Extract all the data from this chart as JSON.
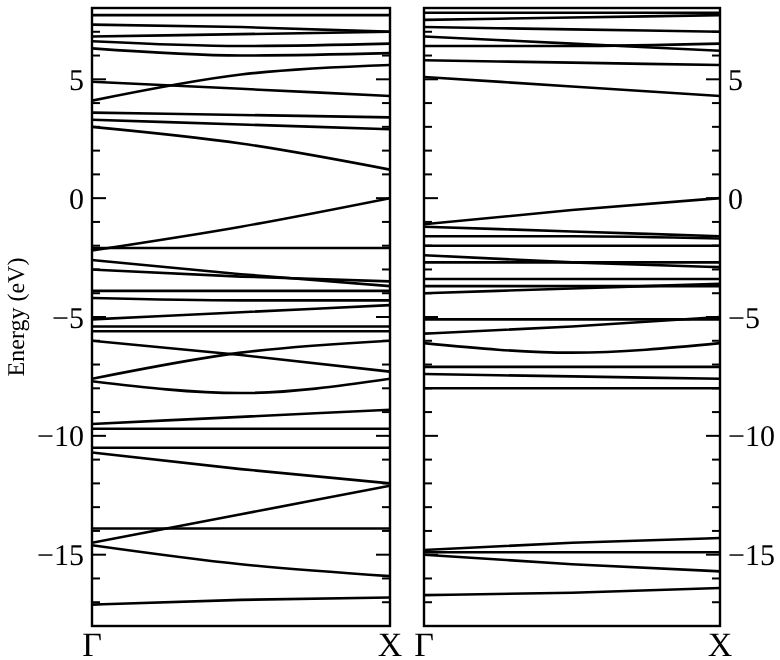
{
  "chart_data": [
    {
      "type": "line",
      "ylabel": "Energy (eV)",
      "categories": [
        "Γ",
        null,
        "X"
      ],
      "ylim": [
        -18,
        8
      ],
      "grid": false,
      "line_style": "solid",
      "marker": "none",
      "yticks": [
        {
          "value": -17,
          "label": null
        },
        {
          "value": -16,
          "label": null
        },
        {
          "value": -15,
          "label": "−15"
        },
        {
          "value": -14,
          "label": null
        },
        {
          "value": -13,
          "label": null
        },
        {
          "value": -12,
          "label": null
        },
        {
          "value": -11,
          "label": null
        },
        {
          "value": -10,
          "label": "−10"
        },
        {
          "value": -9,
          "label": null
        },
        {
          "value": -8,
          "label": null
        },
        {
          "value": -7,
          "label": null
        },
        {
          "value": -6,
          "label": null
        },
        {
          "value": -5,
          "label": "−5"
        },
        {
          "value": -4,
          "label": null
        },
        {
          "value": -3,
          "label": null
        },
        {
          "value": -2,
          "label": null
        },
        {
          "value": -1,
          "label": null
        },
        {
          "value": 0,
          "label": "0"
        },
        {
          "value": 1,
          "label": null
        },
        {
          "value": 2,
          "label": null
        },
        {
          "value": 3,
          "label": null
        },
        {
          "value": 4,
          "label": null
        },
        {
          "value": 5,
          "label": "5"
        },
        {
          "value": 6,
          "label": null
        },
        {
          "value": 7,
          "label": null
        }
      ],
      "series": [
        {
          "color": "#000000",
          "values": [
            7.7,
            7.7,
            7.7
          ]
        },
        {
          "color": "#000000",
          "values": [
            7.3,
            7.2,
            7.0
          ]
        },
        {
          "color": "#000000",
          "values": [
            6.8,
            6.9,
            7.0
          ]
        },
        {
          "color": "#000000",
          "values": [
            6.6,
            6.4,
            6.5
          ]
        },
        {
          "color": "#000000",
          "values": [
            6.3,
            6.0,
            6.1
          ]
        },
        {
          "color": "#000000",
          "values": [
            4.9,
            4.6,
            4.3
          ]
        },
        {
          "color": "#000000",
          "values": [
            4.1,
            5.2,
            5.6
          ]
        },
        {
          "color": "#000000",
          "values": [
            3.6,
            3.5,
            3.4
          ]
        },
        {
          "color": "#000000",
          "values": [
            3.3,
            3.1,
            2.9
          ]
        },
        {
          "color": "#000000",
          "values": [
            3.0,
            2.3,
            1.2
          ]
        },
        {
          "color": "#000000",
          "values": [
            -2.2,
            -1.2,
            0
          ]
        },
        {
          "color": "#000000",
          "values": [
            -2.1,
            -2.1,
            -2.1
          ]
        },
        {
          "color": "#000000",
          "values": [
            -2.6,
            -3.2,
            -3.7
          ]
        },
        {
          "color": "#000000",
          "values": [
            -3.0,
            -3.3,
            -3.5
          ]
        },
        {
          "color": "#000000",
          "values": [
            -3.9,
            -3.9,
            -3.9
          ]
        },
        {
          "color": "#000000",
          "values": [
            -4.2,
            -4.3,
            -4.3
          ]
        },
        {
          "color": "#000000",
          "values": [
            -5.1,
            -4.8,
            -4.5
          ]
        },
        {
          "color": "#000000",
          "values": [
            -5.4,
            -5.4,
            -5.4
          ]
        },
        {
          "color": "#000000",
          "values": [
            -5.6,
            -5.6,
            -5.6
          ]
        },
        {
          "color": "#000000",
          "values": [
            -6.0,
            -6.6,
            -7.3
          ]
        },
        {
          "color": "#000000",
          "values": [
            -7.6,
            -6.5,
            -6.0
          ]
        },
        {
          "color": "#000000",
          "values": [
            -7.7,
            -8.2,
            -7.6
          ]
        },
        {
          "color": "#000000",
          "values": [
            -9.5,
            -9.2,
            -8.9
          ]
        },
        {
          "color": "#000000",
          "values": [
            -9.7,
            -9.7,
            -9.7
          ]
        },
        {
          "color": "#000000",
          "values": [
            -10.5,
            -10.5,
            -10.5
          ]
        },
        {
          "color": "#000000",
          "values": [
            -10.7,
            -11.4,
            -12.0
          ]
        },
        {
          "color": "#000000",
          "values": [
            -14.5,
            -13.3,
            -12.1
          ]
        },
        {
          "color": "#000000",
          "values": [
            -13.9,
            -13.9,
            -13.9
          ]
        },
        {
          "color": "#000000",
          "values": [
            -14.6,
            -15.4,
            -15.9
          ]
        },
        {
          "color": "#000000",
          "values": [
            -17.1,
            -16.9,
            -16.8
          ]
        }
      ]
    },
    {
      "type": "line",
      "categories": [
        "Γ",
        null,
        "X"
      ],
      "ylim": [
        -18,
        8
      ],
      "grid": false,
      "line_style": "solid",
      "marker": "none",
      "yticks": [
        {
          "value": -17,
          "label": null
        },
        {
          "value": -16,
          "label": null
        },
        {
          "value": -15,
          "label": "−15"
        },
        {
          "value": -14,
          "label": null
        },
        {
          "value": -13,
          "label": null
        },
        {
          "value": -12,
          "label": null
        },
        {
          "value": -11,
          "label": null
        },
        {
          "value": -10,
          "label": "−10"
        },
        {
          "value": -9,
          "label": null
        },
        {
          "value": -8,
          "label": null
        },
        {
          "value": -7,
          "label": null
        },
        {
          "value": -6,
          "label": null
        },
        {
          "value": -5,
          "label": "−5"
        },
        {
          "value": -4,
          "label": null
        },
        {
          "value": -3,
          "label": null
        },
        {
          "value": -2,
          "label": null
        },
        {
          "value": -1,
          "label": null
        },
        {
          "value": 0,
          "label": "0"
        },
        {
          "value": 1,
          "label": null
        },
        {
          "value": 2,
          "label": null
        },
        {
          "value": 3,
          "label": null
        },
        {
          "value": 4,
          "label": null
        },
        {
          "value": 5,
          "label": "5"
        },
        {
          "value": 6,
          "label": null
        },
        {
          "value": 7,
          "label": null
        }
      ],
      "series": [
        {
          "color": "#000000",
          "values": [
            7.8,
            7.8,
            7.8
          ]
        },
        {
          "color": "#000000",
          "values": [
            7.5,
            7.6,
            7.7
          ]
        },
        {
          "color": "#000000",
          "values": [
            7.2,
            7.1,
            7.0
          ]
        },
        {
          "color": "#000000",
          "values": [
            6.8,
            6.5,
            6.2
          ]
        },
        {
          "color": "#000000",
          "values": [
            6.4,
            6.4,
            6.5
          ]
        },
        {
          "color": "#000000",
          "values": [
            5.8,
            5.7,
            5.6
          ]
        },
        {
          "color": "#000000",
          "values": [
            5.1,
            4.7,
            4.3
          ]
        },
        {
          "color": "#000000",
          "values": [
            -1.1,
            -0.5,
            0
          ]
        },
        {
          "color": "#000000",
          "values": [
            -1.2,
            -1.4,
            -1.6
          ]
        },
        {
          "color": "#000000",
          "values": [
            -1.6,
            -1.6,
            -1.7
          ]
        },
        {
          "color": "#000000",
          "values": [
            -2.0,
            -2.0,
            -2.0
          ]
        },
        {
          "color": "#000000",
          "values": [
            -2.4,
            -2.7,
            -2.9
          ]
        },
        {
          "color": "#000000",
          "values": [
            -2.7,
            -2.7,
            -2.7
          ]
        },
        {
          "color": "#000000",
          "values": [
            -3.4,
            -3.4,
            -3.4
          ]
        },
        {
          "color": "#000000",
          "values": [
            -3.7,
            -3.7,
            -3.7
          ]
        },
        {
          "color": "#000000",
          "values": [
            -4.0,
            -3.8,
            -3.6
          ]
        },
        {
          "color": "#000000",
          "values": [
            -5.1,
            -5.1,
            -5.1
          ]
        },
        {
          "color": "#000000",
          "values": [
            -5.7,
            -5.4,
            -5.0
          ]
        },
        {
          "color": "#000000",
          "values": [
            -6.1,
            -6.5,
            -6.1
          ]
        },
        {
          "color": "#000000",
          "values": [
            -7.1,
            -7.1,
            -7.1
          ]
        },
        {
          "color": "#000000",
          "values": [
            -7.4,
            -7.5,
            -7.6
          ]
        },
        {
          "color": "#000000",
          "values": [
            -8.0,
            -8.0,
            -8.0
          ]
        },
        {
          "color": "#000000",
          "values": [
            -14.8,
            -14.5,
            -14.3
          ]
        },
        {
          "color": "#000000",
          "values": [
            -14.9,
            -14.9,
            -14.9
          ]
        },
        {
          "color": "#000000",
          "values": [
            -15.0,
            -15.4,
            -15.7
          ]
        },
        {
          "color": "#000000",
          "values": [
            -16.7,
            -16.6,
            -16.4
          ]
        }
      ]
    }
  ]
}
